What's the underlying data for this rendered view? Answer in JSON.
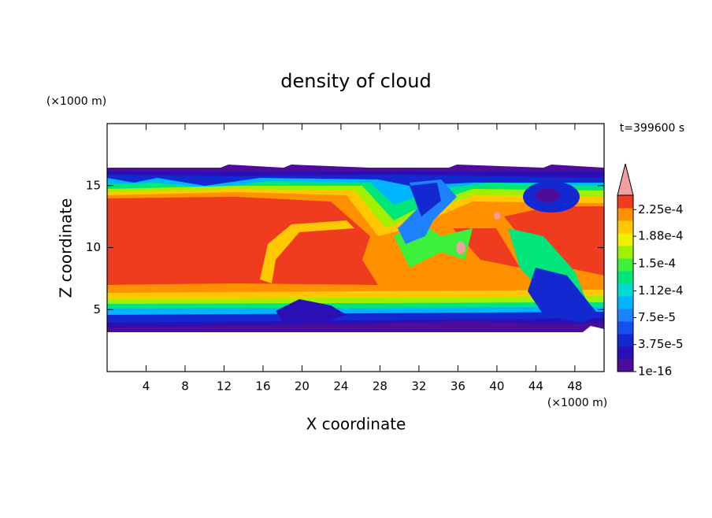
{
  "chart_data": {
    "type": "contour",
    "title": "density of cloud",
    "xlabel": "X coordinate",
    "ylabel": "Z coordinate",
    "xunit": "(×1000 m)",
    "yunit": "(×1000 m)",
    "time_label": "t=399600 s",
    "xlim": [
      0,
      51
    ],
    "xticks": [
      4,
      8,
      12,
      16,
      20,
      24,
      28,
      32,
      36,
      40,
      44,
      48
    ],
    "ylim": [
      0,
      20
    ],
    "yticks": [
      5,
      10,
      15
    ],
    "colorbar": {
      "clim": [
        {
          "value": 1e-16,
          "label": "1e-16"
        },
        0.000245
      ],
      "ticks": [
        {
          "value": 1e-16,
          "label": "1e-16"
        },
        {
          "value": 3.75e-05,
          "label": "3.75e-5"
        },
        {
          "value": 7.5e-05,
          "label": "7.5e-5"
        },
        {
          "value": 0.000112,
          "label": "1.12e-4"
        },
        {
          "value": 0.00015,
          "label": "1.5e-4"
        },
        {
          "value": 0.000188,
          "label": "1.88e-4"
        },
        {
          "value": 0.000225,
          "label": "2.25e-4"
        }
      ],
      "colors": [
        "#4e0c9c",
        "#2a10b4",
        "#1428d2",
        "#1450f0",
        "#1e82ff",
        "#00b4ff",
        "#00dcd2",
        "#00e67a",
        "#3cf03c",
        "#a0f000",
        "#f0f000",
        "#ffc800",
        "#ff9000",
        "#f03c1e"
      ],
      "extend_color": "#f0a0a0"
    }
  }
}
